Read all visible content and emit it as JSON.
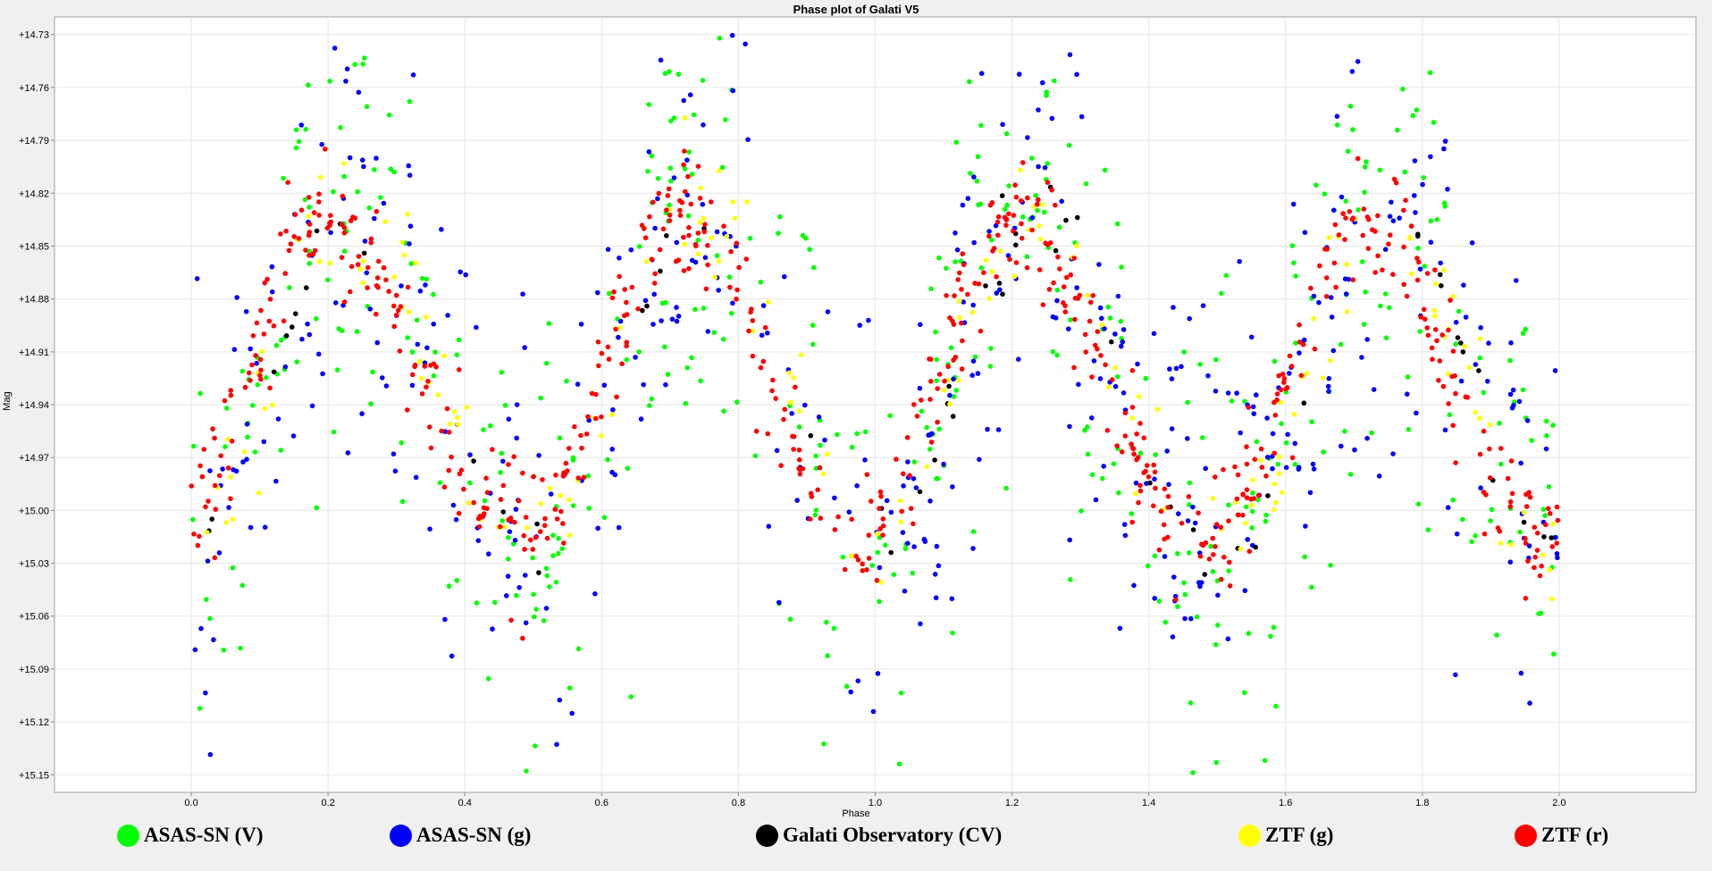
{
  "chart_data": {
    "type": "scatter",
    "title": "Phase plot of Galati V5",
    "xlabel": "Phase",
    "ylabel": "Mag",
    "xlim": [
      -0.2,
      2.2
    ],
    "ylim": [
      14.72,
      15.16
    ],
    "y_inverted": true,
    "x_ticks": [
      "0.0",
      "0.2",
      "0.4",
      "0.6",
      "0.8",
      "1.0",
      "1.2",
      "1.4",
      "1.6",
      "1.8",
      "2.0"
    ],
    "y_ticks": [
      "+14.73",
      "+14.76",
      "+14.79",
      "+14.82",
      "+14.85",
      "+14.88",
      "+14.91",
      "+14.94",
      "+14.97",
      "+15.00",
      "+15.03",
      "+15.06",
      "+15.09",
      "+15.12",
      "+15.15"
    ],
    "grid": true,
    "legend": "bottom",
    "series": [
      {
        "name": "ASAS-SN (V)",
        "color": "#00ff00",
        "n": 470,
        "scatter": 0.07,
        "lag": 0.0
      },
      {
        "name": "ASAS-SN (g)",
        "color": "#0000ff",
        "n": 470,
        "scatter": 0.065,
        "lag": 0.0
      },
      {
        "name": "Galati Observatory (CV)",
        "color": "#000000",
        "n": 60,
        "scatter": 0.012,
        "lag": -0.01
      },
      {
        "name": "ZTF (g)",
        "color": "#ffff00",
        "n": 170,
        "scatter": 0.02,
        "lag": 0.0
      },
      {
        "name": "ZTF (r)",
        "color": "#ff0000",
        "n": 620,
        "scatter": 0.018,
        "lag": 0.02
      }
    ],
    "model": {
      "phase_max": [
        0.22,
        0.74,
        1.22,
        1.74
      ],
      "phase_min": [
        0.5,
        1.0,
        1.5
      ],
      "mag_max": 14.835,
      "mag_min": 15.02
    }
  }
}
